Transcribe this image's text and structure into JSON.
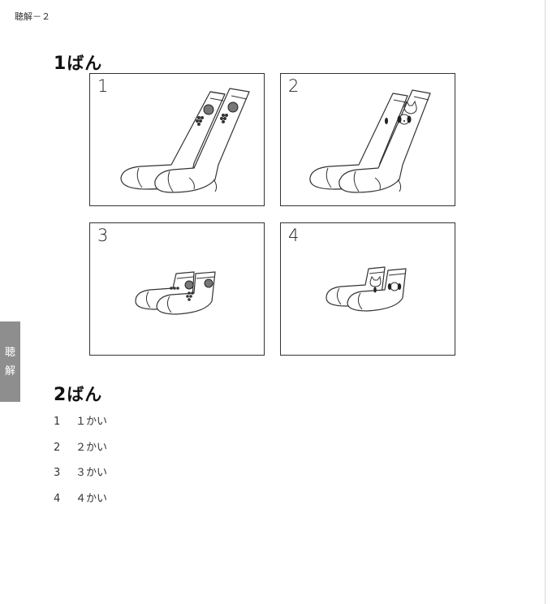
{
  "header": {
    "label": "聴解－２"
  },
  "side_tab": {
    "chars": [
      "聴",
      "解"
    ]
  },
  "question1": {
    "number": "1",
    "suffix": "ばん",
    "panels": [
      {
        "number": "1",
        "picture": "long-socks-fruit-icon"
      },
      {
        "number": "2",
        "picture": "long-socks-animal-icon"
      },
      {
        "number": "3",
        "picture": "short-socks-fruit-icon"
      },
      {
        "number": "4",
        "picture": "short-socks-animal-icon"
      }
    ]
  },
  "question2": {
    "number": "2",
    "suffix": "ばん",
    "options": [
      {
        "num": "1",
        "text": "１かい"
      },
      {
        "num": "2",
        "text": "２かい"
      },
      {
        "num": "3",
        "text": "３かい"
      },
      {
        "num": "4",
        "text": "４かい"
      }
    ]
  }
}
